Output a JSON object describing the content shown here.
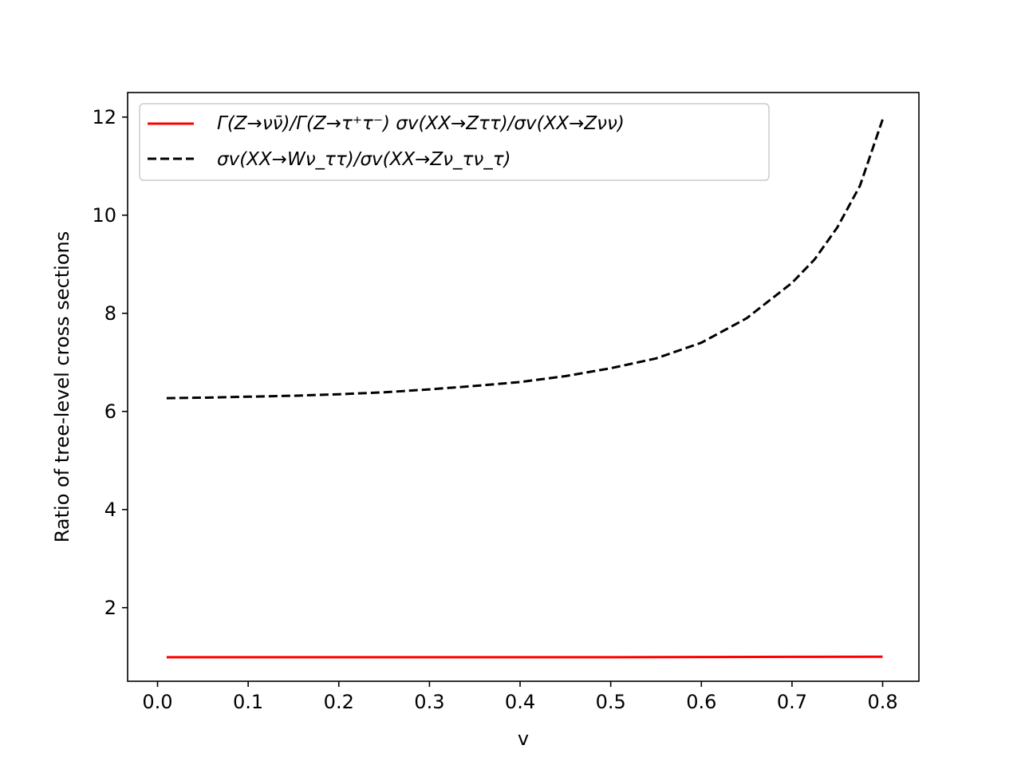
{
  "chart_data": {
    "type": "line",
    "title": "",
    "xlabel": "v",
    "ylabel": "Ratio of tree-level cross sections",
    "xlim": [
      -0.033,
      0.84
    ],
    "ylim": [
      0.5,
      12.5
    ],
    "xticks": [
      0.0,
      0.1,
      0.2,
      0.3,
      0.4,
      0.5,
      0.6,
      0.7,
      0.8
    ],
    "xtick_labels": [
      "0.0",
      "0.1",
      "0.2",
      "0.3",
      "0.4",
      "0.5",
      "0.6",
      "0.7",
      "0.8"
    ],
    "yticks": [
      2,
      4,
      6,
      8,
      10,
      12
    ],
    "ytick_labels": [
      "2",
      "4",
      "6",
      "8",
      "10",
      "12"
    ],
    "grid": false,
    "legend_position": "upper-left",
    "series": [
      {
        "name": "Γ(Z→νν̄)/Γ(Z→τ⁺τ⁻) σv(XX→Zττ)/σv(XX→Zνν)",
        "color": "#ff0000",
        "linestyle": "solid",
        "x": [
          0.01,
          0.1,
          0.2,
          0.3,
          0.4,
          0.5,
          0.6,
          0.7,
          0.8
        ],
        "y": [
          0.99,
          0.99,
          0.99,
          0.99,
          0.99,
          0.99,
          0.995,
          0.998,
          1.0
        ]
      },
      {
        "name": "σv(XX→Wν_ττ)/σv(XX→Zν_τν_τ)",
        "color": "#000000",
        "linestyle": "dashed",
        "x": [
          0.01,
          0.05,
          0.1,
          0.15,
          0.2,
          0.25,
          0.3,
          0.35,
          0.4,
          0.45,
          0.5,
          0.55,
          0.6,
          0.65,
          0.7,
          0.725,
          0.75,
          0.775,
          0.8
        ],
        "y": [
          6.27,
          6.28,
          6.3,
          6.32,
          6.35,
          6.39,
          6.45,
          6.52,
          6.6,
          6.72,
          6.88,
          7.08,
          7.4,
          7.9,
          8.62,
          9.1,
          9.75,
          10.6,
          11.95
        ]
      }
    ]
  }
}
